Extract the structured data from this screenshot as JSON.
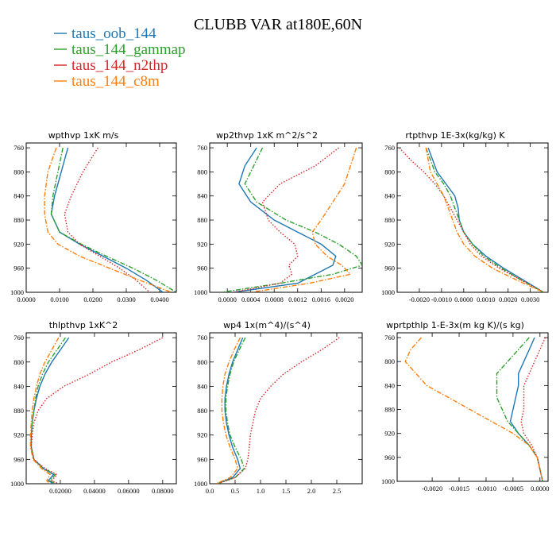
{
  "figure": {
    "title": "CLUBB VAR at180E,60N"
  },
  "legend": [
    {
      "label": "taus_oob_144",
      "color": "#1f77b4",
      "dash": "solid"
    },
    {
      "label": "taus_144_gammap",
      "color": "#2ca02c",
      "dash": "dashdot"
    },
    {
      "label": "taus_144_n2thp",
      "color": "#d62728",
      "dash": "dotted"
    },
    {
      "label": "taus_144_c8m",
      "color": "#ff7f0e",
      "dash": "dashdot"
    }
  ],
  "chart_data": [
    {
      "type": "line",
      "title": "wpthvp   1xK m/s",
      "xlim": [
        0,
        0.045
      ],
      "ylim": [
        1000,
        752
      ],
      "xticks": [
        0,
        0.01,
        0.02,
        0.03,
        0.04
      ],
      "xtick_labels": [
        "0.0000",
        "0.0100",
        "0.0200",
        "0.0300",
        "0.0400"
      ],
      "yticks": [
        760,
        800,
        840,
        880,
        920,
        960,
        1000
      ],
      "ytick_labels": [
        "760",
        "800",
        "840",
        "880",
        "920",
        "960",
        "1000"
      ],
      "y": [
        760,
        800,
        840,
        870,
        900,
        920,
        940,
        960,
        980,
        1000
      ],
      "series": [
        {
          "name": "taus_oob_144",
          "values": [
            0.0125,
            0.0105,
            0.0085,
            0.0075,
            0.01,
            0.016,
            0.023,
            0.03,
            0.036,
            0.041
          ]
        },
        {
          "name": "taus_144_gammap",
          "values": [
            0.011,
            0.0095,
            0.008,
            0.0075,
            0.01,
            0.0165,
            0.024,
            0.032,
            0.039,
            0.045
          ]
        },
        {
          "name": "taus_144_n2thp",
          "values": [
            0.0215,
            0.017,
            0.0135,
            0.0115,
            0.0125,
            0.016,
            0.022,
            0.028,
            0.033,
            0.037
          ]
        },
        {
          "name": "taus_144_c8m",
          "values": [
            0.009,
            0.0065,
            0.0055,
            0.0055,
            0.0065,
            0.0095,
            0.016,
            0.025,
            0.034,
            0.0435
          ]
        }
      ]
    },
    {
      "type": "line",
      "title": "wp2thvp   1xK m^2/s^2",
      "xlim": [
        -0.0003,
        0.0023
      ],
      "ylim": [
        1000,
        752
      ],
      "xticks": [
        0,
        0.0004,
        0.0008,
        0.0012,
        0.0016,
        0.002
      ],
      "xtick_labels": [
        "0.0000",
        "0.0004",
        "0.0008",
        "0.0012",
        "0.0016",
        "0.0020"
      ],
      "yticks": [
        760,
        800,
        840,
        880,
        920,
        960,
        1000
      ],
      "ytick_labels": [
        "760",
        "800",
        "840",
        "880",
        "920",
        "960",
        "1000"
      ],
      "y": [
        760,
        790,
        820,
        850,
        880,
        900,
        920,
        940,
        955,
        970,
        985,
        1000
      ],
      "series": [
        {
          "name": "taus_oob_144",
          "values": [
            0.0005,
            0.0003,
            0.0002,
            0.0004,
            0.0008,
            0.0012,
            0.0016,
            0.00185,
            0.0018,
            0.0015,
            0.0012,
            0.0001
          ]
        },
        {
          "name": "taus_144_gammap",
          "values": [
            0.0006,
            0.00045,
            0.0003,
            0.0005,
            0.001,
            0.0015,
            0.0019,
            0.0022,
            0.0023,
            0.0018,
            0.0009,
            -0.0001
          ]
        },
        {
          "name": "taus_144_n2thp",
          "values": [
            0.0019,
            0.0015,
            0.0009,
            0.0006,
            0.0007,
            0.0009,
            0.00115,
            0.0012,
            0.00105,
            0.0011,
            0.0009,
            0.0001
          ]
        },
        {
          "name": "taus_144_c8m",
          "values": [
            0.0022,
            0.0021,
            0.002,
            0.0018,
            0.0016,
            0.00145,
            0.0015,
            0.0017,
            0.00195,
            0.0021,
            0.0014,
            0.0004
          ]
        }
      ]
    },
    {
      "type": "line",
      "title": "rtpthvp   1E-3x(kg/kg) K",
      "xlim": [
        -0.003,
        0.0038
      ],
      "ylim": [
        1000,
        752
      ],
      "xticks": [
        -0.002,
        -0.001,
        0,
        0.001,
        0.002,
        0.003
      ],
      "xtick_labels": [
        "-0.0020",
        "-0.0010",
        "0.0000",
        "0.0010",
        "0.0020",
        "0.0030"
      ],
      "yticks": [
        760,
        800,
        840,
        880,
        920,
        960,
        1000
      ],
      "ytick_labels": [
        "760",
        "800",
        "840",
        "880",
        "920",
        "960",
        "1000"
      ],
      "y": [
        760,
        780,
        800,
        820,
        840,
        860,
        880,
        900,
        920,
        940,
        960,
        980,
        1000
      ],
      "series": [
        {
          "name": "taus_oob_144",
          "values": [
            -0.0016,
            -0.0014,
            -0.0012,
            -0.0008,
            -0.0004,
            -0.00025,
            -0.0002,
            0.0,
            0.0004,
            0.001,
            0.0018,
            0.0027,
            0.0036
          ]
        },
        {
          "name": "taus_144_gammap",
          "values": [
            -0.0017,
            -0.0015,
            -0.0013,
            -0.0009,
            -0.0006,
            -0.0004,
            -0.0002,
            0.0,
            0.0004,
            0.0009,
            0.0017,
            0.0026,
            0.0036
          ]
        },
        {
          "name": "taus_144_n2thp",
          "values": [
            -0.0029,
            -0.0024,
            -0.0018,
            -0.0013,
            -0.0009,
            -0.0006,
            -0.0003,
            0.0,
            0.0003,
            0.0008,
            0.0016,
            0.0026,
            0.0036
          ]
        },
        {
          "name": "taus_144_c8m",
          "values": [
            -0.0017,
            -0.0016,
            -0.0015,
            -0.0012,
            -0.0009,
            -0.0007,
            -0.0005,
            -0.0003,
            0.0,
            0.0005,
            0.0013,
            0.0024,
            0.0036
          ]
        }
      ]
    },
    {
      "type": "line",
      "title": "thlpthvp   1xK^2",
      "xlim": [
        0,
        0.088
      ],
      "ylim": [
        1000,
        752
      ],
      "xticks": [
        0.02,
        0.04,
        0.06,
        0.08
      ],
      "xtick_labels": [
        "0.02000",
        "0.04000",
        "0.06000",
        "0.08000"
      ],
      "yticks": [
        760,
        800,
        840,
        880,
        920,
        960,
        1000
      ],
      "ytick_labels": [
        "760",
        "800",
        "840",
        "880",
        "920",
        "960",
        "1000"
      ],
      "y": [
        760,
        780,
        800,
        820,
        840,
        860,
        880,
        900,
        920,
        940,
        960,
        975,
        985,
        995,
        1000
      ],
      "series": [
        {
          "name": "taus_oob_144",
          "values": [
            0.025,
            0.02,
            0.015,
            0.011,
            0.008,
            0.006,
            0.0045,
            0.0035,
            0.003,
            0.003,
            0.0045,
            0.01,
            0.016,
            0.013,
            0.016
          ]
        },
        {
          "name": "taus_144_gammap",
          "values": [
            0.023,
            0.018,
            0.013,
            0.0095,
            0.007,
            0.0055,
            0.0045,
            0.0035,
            0.003,
            0.003,
            0.0045,
            0.01,
            0.017,
            0.014,
            0.017
          ]
        },
        {
          "name": "taus_144_n2thp",
          "values": [
            0.08,
            0.066,
            0.05,
            0.037,
            0.022,
            0.012,
            0.007,
            0.0045,
            0.0035,
            0.003,
            0.0045,
            0.011,
            0.018,
            0.015,
            0.019
          ]
        },
        {
          "name": "taus_144_c8m",
          "values": [
            0.019,
            0.015,
            0.011,
            0.008,
            0.006,
            0.0045,
            0.0035,
            0.003,
            0.0025,
            0.0025,
            0.004,
            0.009,
            0.014,
            0.012,
            0.014
          ]
        }
      ]
    },
    {
      "type": "line",
      "title": "wp4   1x(m^4)/(s^4)",
      "xlim": [
        0,
        3.0
      ],
      "ylim": [
        1000,
        752
      ],
      "xticks": [
        0,
        0.5,
        1.0,
        1.5,
        2.0,
        2.5
      ],
      "xtick_labels": [
        "0.0",
        "0.5",
        "1.0",
        "1.5",
        "2.0",
        "2.5"
      ],
      "yticks": [
        760,
        800,
        840,
        880,
        920,
        960,
        1000
      ],
      "ytick_labels": [
        "760",
        "800",
        "840",
        "880",
        "920",
        "960",
        "1000"
      ],
      "y": [
        760,
        780,
        800,
        820,
        840,
        860,
        880,
        900,
        920,
        940,
        960,
        975,
        990,
        1000
      ],
      "series": [
        {
          "name": "taus_oob_144",
          "values": [
            0.65,
            0.55,
            0.45,
            0.38,
            0.33,
            0.3,
            0.3,
            0.33,
            0.38,
            0.45,
            0.55,
            0.6,
            0.45,
            0.15
          ]
        },
        {
          "name": "taus_144_gammap",
          "values": [
            0.7,
            0.58,
            0.47,
            0.4,
            0.35,
            0.32,
            0.32,
            0.35,
            0.4,
            0.5,
            0.62,
            0.68,
            0.5,
            0.15
          ]
        },
        {
          "name": "taus_144_n2thp",
          "values": [
            2.55,
            2.2,
            1.8,
            1.45,
            1.2,
            1.0,
            0.9,
            0.85,
            0.8,
            0.78,
            0.75,
            0.7,
            0.5,
            0.15
          ]
        },
        {
          "name": "taus_144_c8m",
          "values": [
            0.6,
            0.48,
            0.38,
            0.3,
            0.26,
            0.24,
            0.24,
            0.27,
            0.32,
            0.4,
            0.5,
            0.55,
            0.4,
            0.12
          ]
        }
      ]
    },
    {
      "type": "line",
      "title": "wprtpthlp   1-E-3x(m kg K)/(s kg)",
      "xlim": [
        -0.00265,
        0.00015
      ],
      "ylim": [
        1000,
        752
      ],
      "xticks": [
        -0.002,
        -0.0015,
        -0.001,
        -0.0005,
        0
      ],
      "xtick_labels": [
        "-0.0020",
        "-0.0015",
        "-0.0010",
        "-0.0005",
        "0.0000"
      ],
      "yticks": [
        760,
        800,
        840,
        880,
        920,
        960,
        1000
      ],
      "ytick_labels": [
        "760",
        "800",
        "840",
        "880",
        "920",
        "960",
        "1000"
      ],
      "y": [
        760,
        780,
        800,
        820,
        840,
        860,
        880,
        900,
        920,
        940,
        960,
        980,
        1000
      ],
      "series": [
        {
          "name": "taus_oob_144",
          "values": [
            -0.0001,
            -0.0002,
            -0.0003,
            -0.0004,
            -0.0004,
            -0.00045,
            -0.0005,
            -0.00055,
            -0.0004,
            -0.0002,
            -5e-05,
            0.0,
            5e-05
          ]
        },
        {
          "name": "taus_144_gammap",
          "values": [
            -0.0002,
            -0.0004,
            -0.0006,
            -0.0008,
            -0.0008,
            -0.0008,
            -0.0007,
            -0.0006,
            -0.0004,
            -0.0002,
            -5e-05,
            0.0,
            5e-05
          ]
        },
        {
          "name": "taus_144_n2thp",
          "values": [
            0.0001,
            0.0,
            -0.0001,
            -0.0002,
            -0.0003,
            -0.0003,
            -0.0003,
            -0.00035,
            -0.0003,
            -0.00015,
            -5e-05,
            0.0,
            5e-05
          ]
        },
        {
          "name": "taus_144_c8m",
          "values": [
            -0.0022,
            -0.0024,
            -0.0025,
            -0.0023,
            -0.0021,
            -0.0017,
            -0.0013,
            -0.0009,
            -0.0005,
            -0.0002,
            -5e-05,
            0.0,
            5e-05
          ]
        }
      ]
    }
  ]
}
